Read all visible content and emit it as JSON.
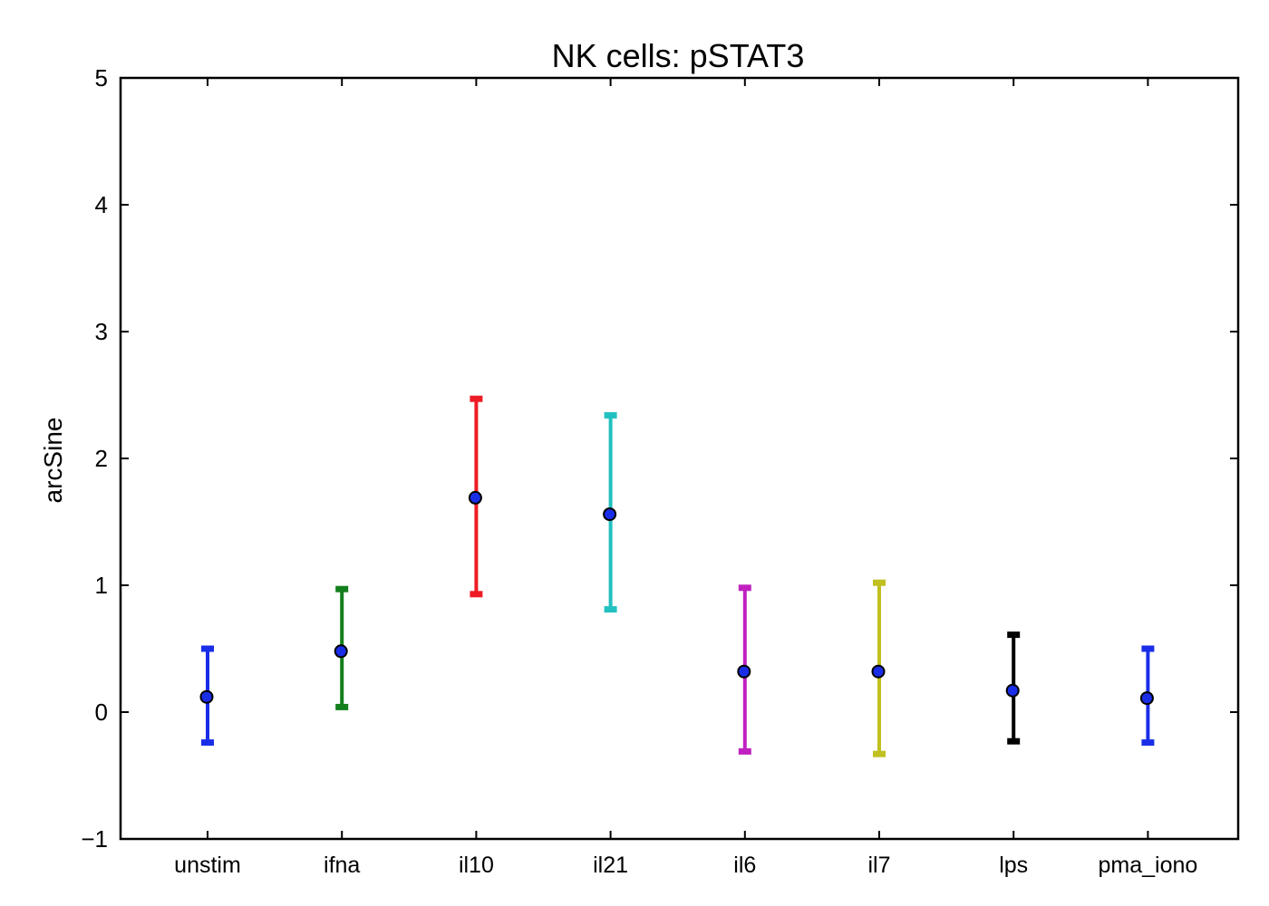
{
  "chart_data": {
    "type": "errorbar",
    "title": "NK cells: pSTAT3",
    "xlabel": "",
    "ylabel": "arcSine",
    "ylim": [
      -1,
      5
    ],
    "yticks": [
      -1,
      0,
      1,
      2,
      3,
      4,
      5
    ],
    "ytick_labels": [
      "−1",
      "0",
      "1",
      "2",
      "3",
      "4",
      "5"
    ],
    "grid": false,
    "marker_color": "#1a2ee8",
    "categories": [
      "unstim",
      "ifna",
      "il10",
      "il21",
      "il6",
      "il7",
      "lps",
      "pma_iono"
    ],
    "points": [
      {
        "category": "unstim",
        "mean": 0.12,
        "low": -0.24,
        "high": 0.5,
        "color": "#1a2ee8"
      },
      {
        "category": "ifna",
        "mean": 0.48,
        "low": 0.04,
        "high": 0.97,
        "color": "#137f1c"
      },
      {
        "category": "il10",
        "mean": 1.69,
        "low": 0.93,
        "high": 2.47,
        "color": "#ee1c25"
      },
      {
        "category": "il21",
        "mean": 1.56,
        "low": 0.81,
        "high": 2.34,
        "color": "#22c0c0"
      },
      {
        "category": "il6",
        "mean": 0.32,
        "low": -0.31,
        "high": 0.98,
        "color": "#c021c0"
      },
      {
        "category": "il7",
        "mean": 0.32,
        "low": -0.33,
        "high": 1.02,
        "color": "#c0c020"
      },
      {
        "category": "lps",
        "mean": 0.17,
        "low": -0.23,
        "high": 0.61,
        "color": "#000000"
      },
      {
        "category": "pma_iono",
        "mean": 0.11,
        "low": -0.24,
        "high": 0.5,
        "color": "#1a2ee8"
      }
    ]
  }
}
